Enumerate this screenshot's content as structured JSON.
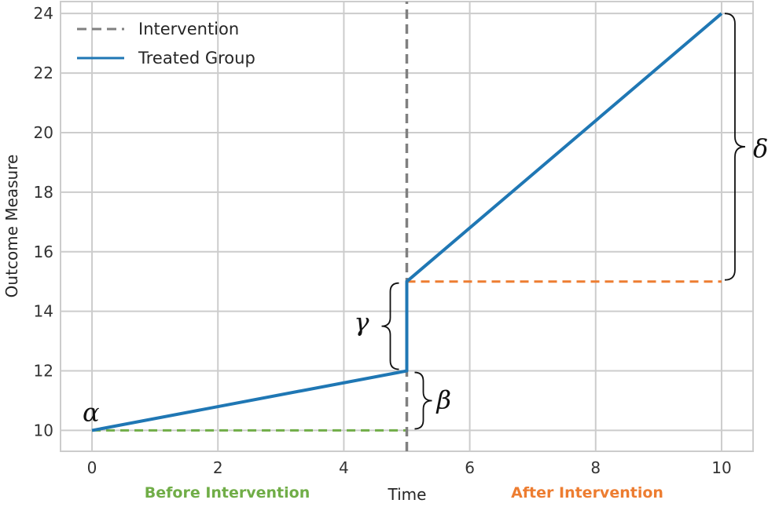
{
  "chart_data": {
    "type": "line",
    "xlabel": "Time",
    "ylabel": "Outcome Measure",
    "xlim": [
      -0.5,
      10.5
    ],
    "ylim": [
      9.3,
      24.4
    ],
    "xticks": [
      0,
      2,
      4,
      6,
      8,
      10
    ],
    "yticks": [
      10,
      12,
      14,
      16,
      18,
      20,
      22,
      24
    ],
    "grid": true,
    "legend_position": "top-left",
    "series": [
      {
        "name": "Intervention",
        "style": "dashed",
        "color": "#808080",
        "x": [
          5,
          5
        ],
        "y": [
          9.3,
          24.4
        ]
      },
      {
        "name": "Treated Group",
        "style": "solid",
        "color": "#1f77b4",
        "x": [
          0,
          5,
          5,
          10
        ],
        "y": [
          10,
          12,
          15,
          24
        ]
      }
    ],
    "reference_lines": [
      {
        "style": "dashed",
        "color": "#70ad47",
        "x": [
          0,
          5
        ],
        "y": [
          10,
          10
        ]
      },
      {
        "style": "dashed",
        "color": "#ed7d31",
        "x": [
          5,
          10
        ],
        "y": [
          15,
          15
        ]
      }
    ],
    "annotations": [
      {
        "text": "α",
        "x": 0,
        "y": 10
      },
      {
        "text": "β",
        "x": 5,
        "y": [
          10,
          12
        ]
      },
      {
        "text": "γ",
        "x": 5,
        "y": [
          12,
          15
        ]
      },
      {
        "text": "δ",
        "x": 10,
        "y": [
          15,
          24
        ]
      }
    ],
    "region_labels": [
      {
        "text": "Before Intervention",
        "color": "#70ad47"
      },
      {
        "text": "After Intervention",
        "color": "#ed7d31"
      }
    ]
  }
}
